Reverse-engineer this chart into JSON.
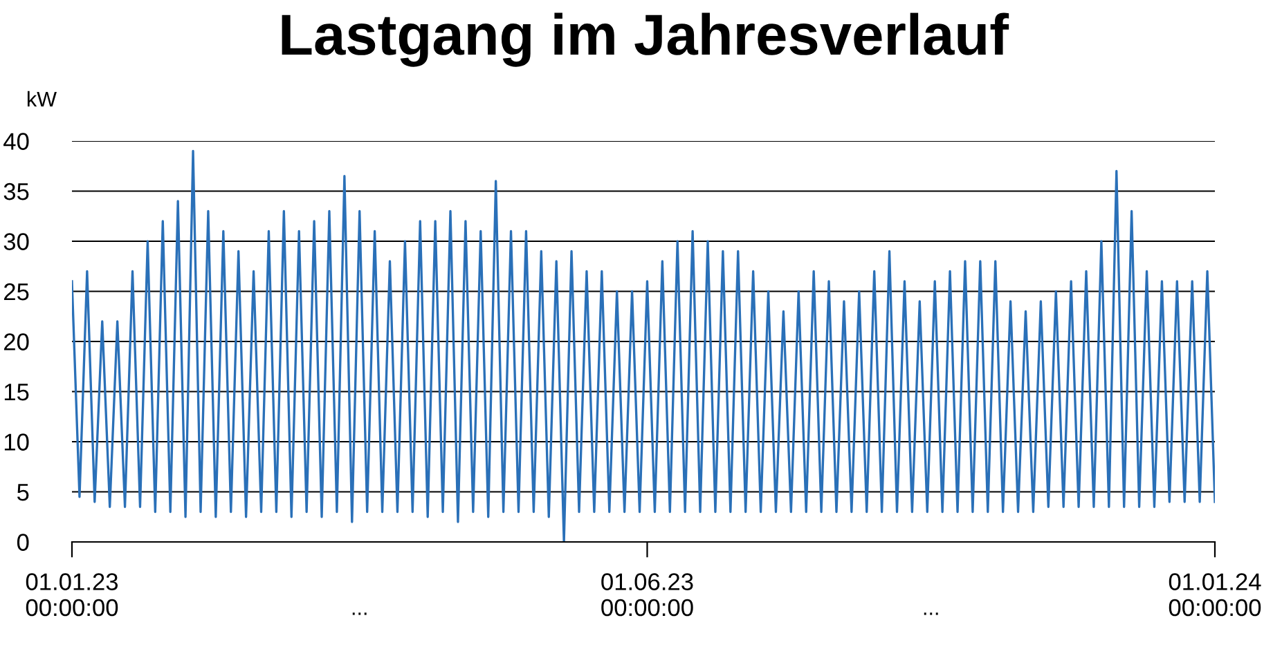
{
  "chart_data": {
    "type": "line",
    "title": "Lastgang im Jahresverlauf",
    "ylabel": "kW",
    "categories": [
      "01.01.23\n00:00:00",
      null,
      null,
      null,
      null,
      null,
      null,
      null,
      null,
      null,
      null,
      null,
      null,
      null,
      null,
      null,
      null,
      null,
      null,
      null,
      null,
      null,
      null,
      null,
      null,
      null,
      null,
      null,
      null,
      null,
      null,
      null,
      null,
      null,
      null,
      null,
      null,
      null,
      null,
      null,
      null,
      null,
      null,
      null,
      null,
      null,
      null,
      null,
      null,
      null,
      null,
      null,
      null,
      null,
      null,
      null,
      null,
      null,
      null,
      null,
      null,
      null,
      null,
      null,
      null,
      null,
      null,
      null,
      null,
      null,
      null,
      null,
      null,
      null,
      null,
      null,
      "01.06.23\n00:00:00",
      null,
      null,
      null,
      null,
      null,
      null,
      null,
      null,
      null,
      null,
      null,
      null,
      null,
      null,
      null,
      null,
      null,
      null,
      null,
      null,
      null,
      null,
      null,
      null,
      null,
      null,
      null,
      null,
      null,
      null,
      null,
      null,
      null,
      null,
      null,
      null,
      null,
      null,
      null,
      null,
      null,
      null,
      null,
      null,
      null,
      null,
      null,
      null,
      null,
      null,
      null,
      null,
      null,
      null,
      null,
      null,
      null,
      null,
      null,
      null,
      null,
      null,
      null,
      null,
      null,
      null,
      null,
      null,
      null,
      null,
      null,
      null,
      null,
      null,
      "01.01.24\n00:00:00"
    ],
    "series": [
      {
        "color": "#2a70b8",
        "values": [
          26,
          4.5,
          27,
          4,
          22,
          3.5,
          22,
          3.5,
          27,
          3.5,
          30,
          3,
          32,
          3,
          34,
          2.5,
          39,
          3,
          33,
          2.5,
          31,
          3,
          29,
          2.5,
          27,
          3,
          31,
          3,
          33,
          2.5,
          31,
          3,
          32,
          2.5,
          33,
          3,
          36.5,
          2,
          33,
          3,
          31,
          3,
          28,
          3,
          30,
          3,
          32,
          2.5,
          32,
          3,
          33,
          2,
          32,
          3,
          31,
          2.5,
          36,
          3,
          31,
          3,
          31,
          3,
          29,
          2.5,
          28,
          0,
          29,
          3,
          27,
          3,
          27,
          3,
          25,
          3,
          25,
          3,
          26,
          3,
          28,
          3,
          30,
          3,
          31,
          3,
          30,
          3,
          29,
          3,
          29,
          3,
          27,
          3,
          25,
          3,
          23,
          3,
          25,
          3,
          27,
          3,
          26,
          3,
          24,
          3,
          25,
          3,
          27,
          3,
          29,
          3,
          26,
          3,
          24,
          3,
          26,
          3,
          27,
          3,
          28,
          3,
          28,
          3,
          28,
          3,
          24,
          3,
          23,
          3,
          24,
          3.5,
          25,
          3.5,
          26,
          3.5,
          27,
          3.5,
          30,
          3.5,
          37,
          3.5,
          33,
          3.5,
          27,
          3.5,
          26,
          4,
          26,
          4,
          26,
          4,
          27,
          4
        ]
      }
    ],
    "ylim": [
      0,
      40
    ],
    "yticks": [
      0,
      5,
      10,
      15,
      20,
      25,
      30,
      35,
      40
    ],
    "grid": "y",
    "marker": "none",
    "line_style": "solid",
    "annotations": [
      "...",
      "..."
    ]
  }
}
